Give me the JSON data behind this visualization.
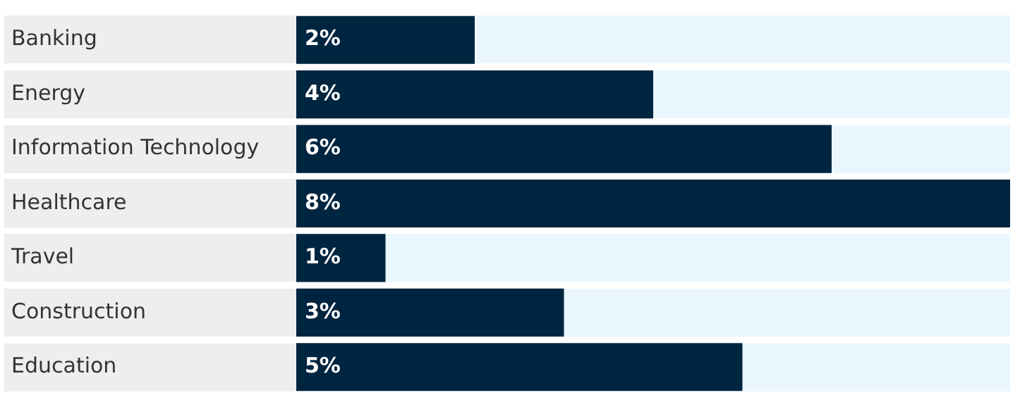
{
  "chart_data": {
    "type": "bar",
    "orientation": "horizontal",
    "categories": [
      "Banking",
      "Energy",
      "Information Technology",
      "Healthcare",
      "Travel",
      "Construction",
      "Education"
    ],
    "values": [
      2,
      4,
      6,
      8,
      1,
      3,
      5
    ],
    "value_labels": [
      "2%",
      "4%",
      "6%",
      "8%",
      "1%",
      "3%",
      "5%"
    ],
    "color": "#002540",
    "legend": false,
    "tick_labels": "y"
  }
}
